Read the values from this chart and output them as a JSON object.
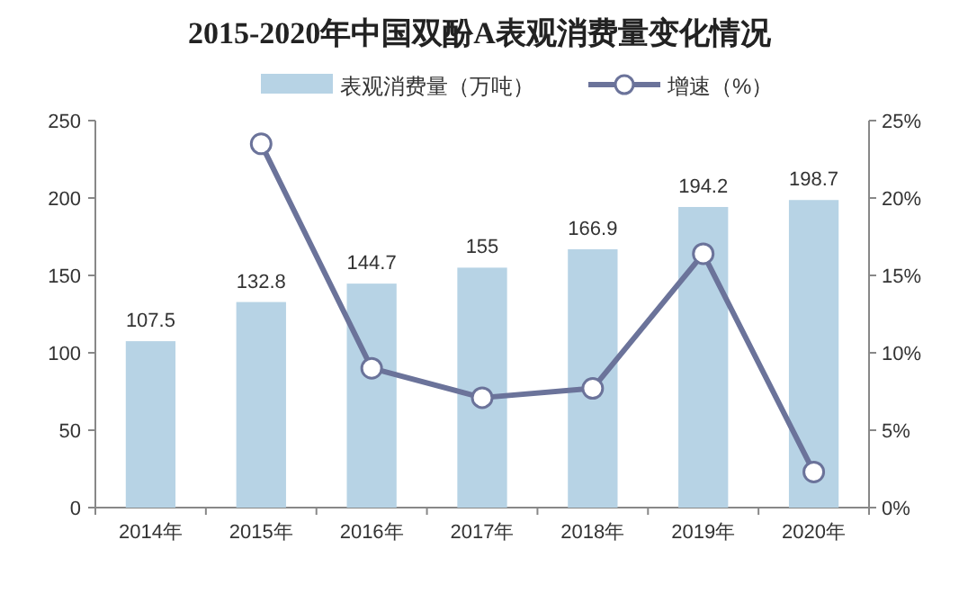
{
  "chart_data": {
    "type": "bar",
    "title": "2015-2020年中国双酚A表观消费量变化情况",
    "categories": [
      "2014年",
      "2015年",
      "2016年",
      "2017年",
      "2018年",
      "2019年",
      "2020年"
    ],
    "series": [
      {
        "name": "表观消费量（万吨）",
        "color": "#b7d3e5",
        "values": [
          107.5,
          132.8,
          144.7,
          155,
          166.9,
          194.2,
          198.7
        ],
        "data_labels": true
      },
      {
        "name": "增速（%）",
        "type": "line",
        "axis": "y2",
        "color": "#6b739a",
        "marker": "circle",
        "values": [
          null,
          23.5,
          9.0,
          7.1,
          7.7,
          16.4,
          2.3
        ]
      }
    ],
    "ylim": [
      0,
      250
    ],
    "yticks": [
      0,
      50,
      100,
      150,
      200,
      250
    ],
    "y2lim": [
      0,
      25
    ],
    "y2ticks": [
      {
        "value": 0,
        "label": "0%"
      },
      {
        "value": 5,
        "label": "5%"
      },
      {
        "value": 10,
        "label": "10%"
      },
      {
        "value": 15,
        "label": "15%"
      },
      {
        "value": 20,
        "label": "20%"
      },
      {
        "value": 25,
        "label": "25%"
      }
    ],
    "legend": "top",
    "grid": false
  }
}
